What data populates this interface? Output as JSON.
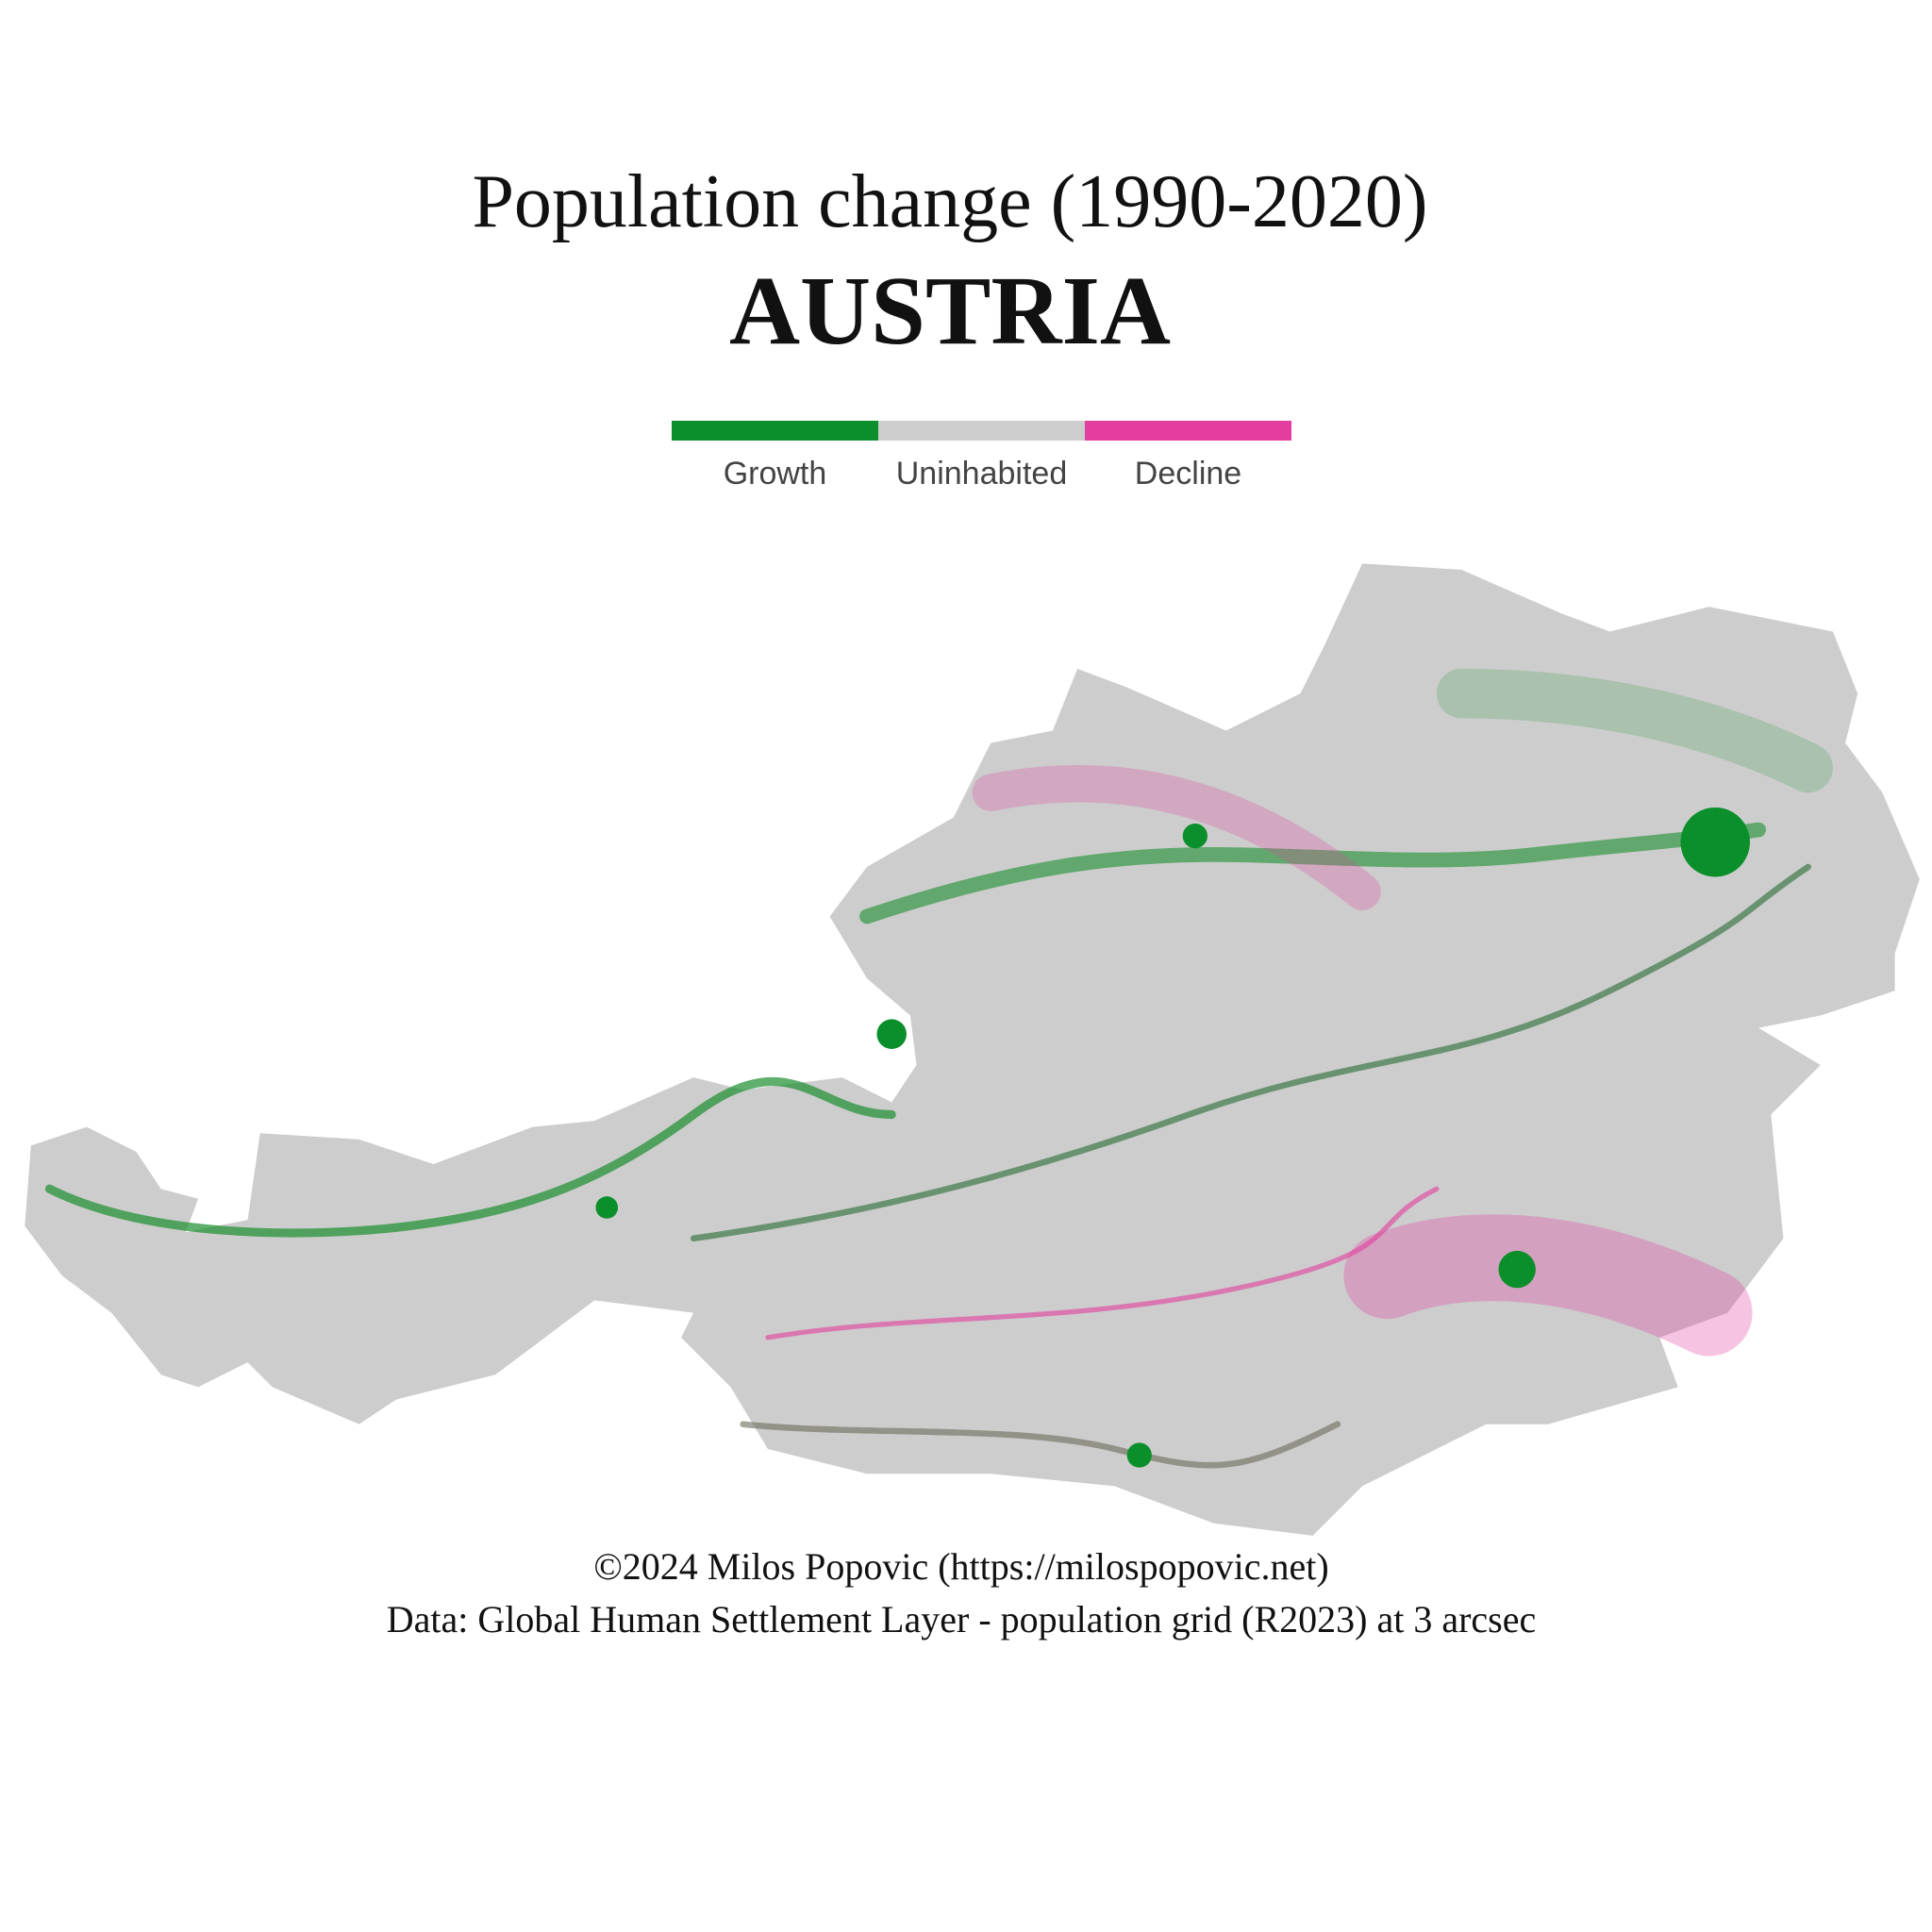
{
  "title": "Population change (1990-2020)",
  "subtitle": "AUSTRIA",
  "legend": [
    {
      "label": "Growth",
      "color": "#0b8f2a"
    },
    {
      "label": "Uninhabited",
      "color": "#cdcdcd"
    },
    {
      "label": "Decline",
      "color": "#e23d9f"
    }
  ],
  "credits": [
    "©2024 Milos Popovic (https://milospopovic.net)",
    "Data: Global Human Settlement Layer - population grid (R2023) at 3 arcsec"
  ]
}
